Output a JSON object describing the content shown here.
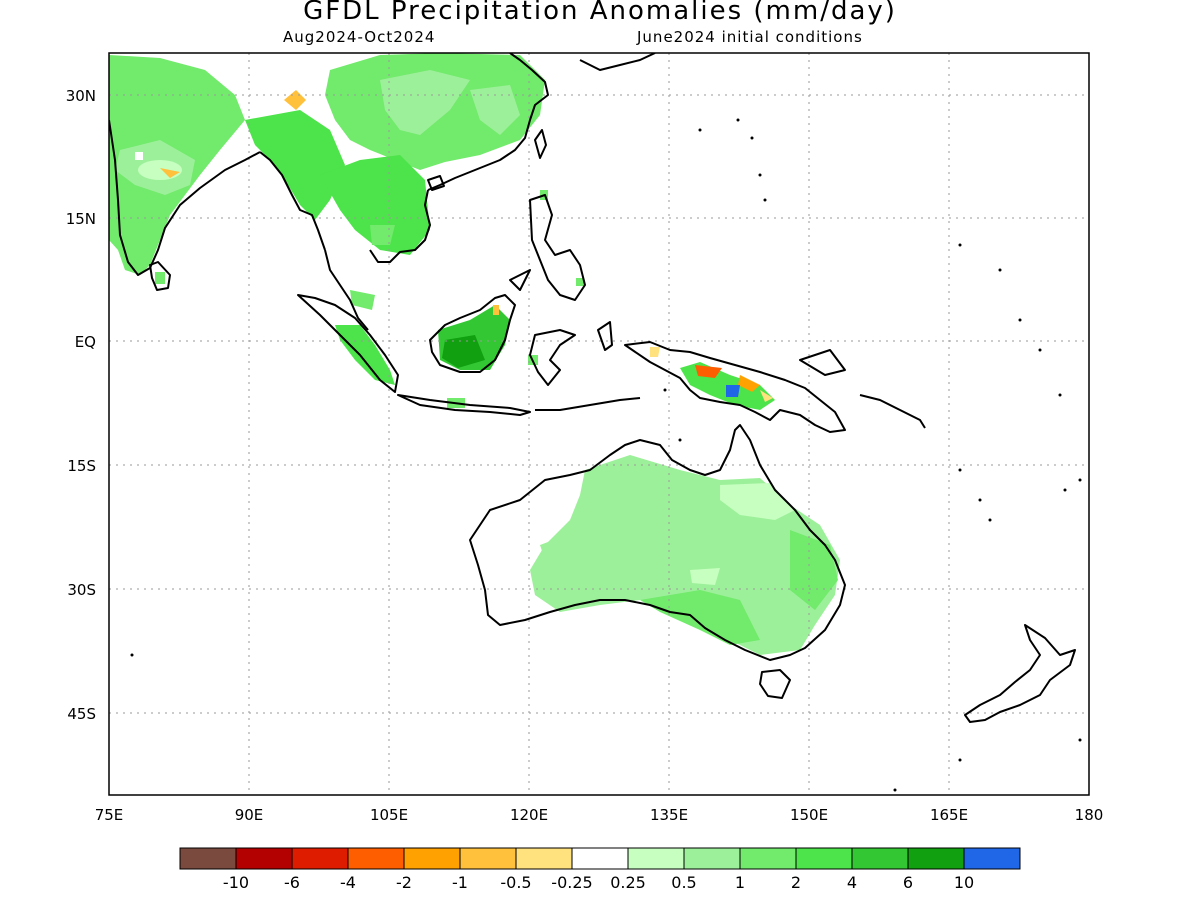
{
  "title": "GFDL Precipitation Anomalies (mm/day)",
  "subtitle_left": "Aug2024-Oct2024",
  "subtitle_right": "June2024 initial conditions",
  "axes": {
    "lon_labels": [
      "75E",
      "90E",
      "105E",
      "120E",
      "135E",
      "150E",
      "165E",
      "180"
    ],
    "lat_labels": [
      "30N",
      "15N",
      "EQ",
      "15S",
      "30S",
      "45S"
    ]
  },
  "legend": {
    "colors": [
      "#7a4a3e",
      "#b30000",
      "#dd1c00",
      "#ff5e00",
      "#ffa100",
      "#ffc03c",
      "#ffe17e",
      "#ffffff",
      "#c6ffc0",
      "#9df09a",
      "#72ea6c",
      "#4de34a",
      "#33c833",
      "#10a010",
      "#1f67e6"
    ],
    "labels": [
      "-10",
      "-6",
      "-4",
      "-2",
      "-1",
      "-0.5",
      "-0.25",
      "0.25",
      "0.5",
      "1",
      "2",
      "4",
      "6",
      "10"
    ]
  }
}
